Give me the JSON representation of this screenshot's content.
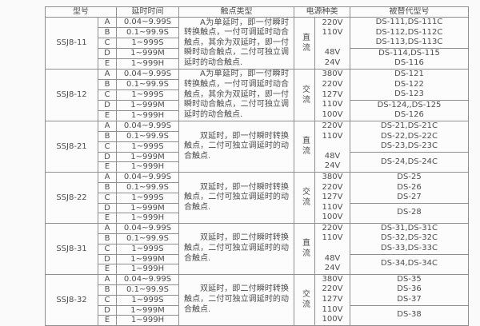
{
  "colors": {
    "background": "#fafafa",
    "border": "#8f8f8f",
    "text": "#4d4d4d"
  },
  "table": {
    "headers": {
      "model": "型号",
      "delay": "延时时间",
      "contact": "触点类型",
      "power": "电源种类",
      "replaced": "被替代型号"
    },
    "delay_rows": [
      {
        "letter": "A",
        "delay": "0.04~9.99S"
      },
      {
        "letter": "B",
        "delay": "0.1~99.9S"
      },
      {
        "letter": "C",
        "delay": "1~999S"
      },
      {
        "letter": "D",
        "delay": "1~999M"
      },
      {
        "letter": "E",
        "delay": "1~999H"
      }
    ],
    "contact_texts": {
      "single": "A为单延时，即一付瞬时转换触点，一付可调延时动合触点，其余为双延时，即一付瞬时动合触点，二付可独立调延时的动合触点.",
      "double_one": "双延时，即一付瞬时转换触点，二付可独立调延时的动合触点.",
      "double_two": "双延时，即二付瞬时转换触点，二付可独立调延时的动合触点."
    },
    "blocks": [
      {
        "model": "SSJ8-11",
        "contact": "A为单延时，即一付瞬时转换触点，一付可调延时动合触点，其余为双延时，即一付瞬时动合触点，二付可独立调延时的动合触点.",
        "power_type": "直流",
        "voltages": [
          "220V",
          "110V",
          "",
          "48V",
          "24V"
        ],
        "replaced_top": [
          "DS-111,DS-111C",
          "DS-112,DS-112C",
          "DS-113,DS-113C"
        ],
        "replaced_bottom": [
          "DS-114,DS-115",
          "DS-116"
        ]
      },
      {
        "model": "SSJ8-12",
        "contact": "A为单延时，即一付瞬时转换触点，一付可调延时动合触点，其余为双延时，即一付瞬时动合触点，二付可独立调延时的动合触点.",
        "power_type": "交流",
        "voltages": [
          "380V",
          "220V",
          "127V",
          "110V",
          "100V"
        ],
        "replaced_top": [
          "DS-121",
          "DS-122",
          "DS-123"
        ],
        "replaced_bottom": [
          "DS-124,,DS-125",
          "DS-126"
        ]
      },
      {
        "model": "SSJ8-21",
        "contact": "双延时，即一付瞬时转换触点，二付可独立调延时的动合触点.",
        "power_type": "直流",
        "voltages": [
          "220V",
          "110V",
          "",
          "48V",
          "24V"
        ],
        "replaced_top": [
          "DS-21,DS-21C",
          "DS-22,DS-22C",
          "DS-23,DS-23C"
        ],
        "replaced_bottom": [
          "DS-24,DS-24C"
        ]
      },
      {
        "model": "SSJ8-22",
        "contact": "双延时，即一付瞬时转换触点，二付可独立调延时的动合触点.",
        "power_type": "交流",
        "voltages": [
          "380V",
          "220V",
          "127V",
          "110V",
          "100V"
        ],
        "replaced_top": [
          "DS-25",
          "DS-26",
          "DS-27"
        ],
        "replaced_bottom": [
          "DS-28"
        ]
      },
      {
        "model": "SSJ8-31",
        "contact": "双延时，即二付瞬时转换触点，二付可独立调延时的动合触点.",
        "power_type": "直流",
        "voltages": [
          "220V",
          "110V",
          "",
          "48V",
          "24V"
        ],
        "replaced_top": [
          "DS-31,DS-31C",
          "DS-32,DS-32C",
          "DS-33,DS-33C"
        ],
        "replaced_bottom": [
          "DS-34,DS-34C"
        ]
      },
      {
        "model": "SSJ8-32",
        "contact": "双延时，即二付瞬时转换触点，二付可独立调延时的动合触点.",
        "power_type": "交流",
        "voltages": [
          "380V",
          "220V",
          "127V",
          "110V",
          "100V"
        ],
        "replaced_top": [
          "DS-35",
          "DS-36",
          "DS-37"
        ],
        "replaced_bottom": [
          "DS-38"
        ]
      }
    ]
  }
}
